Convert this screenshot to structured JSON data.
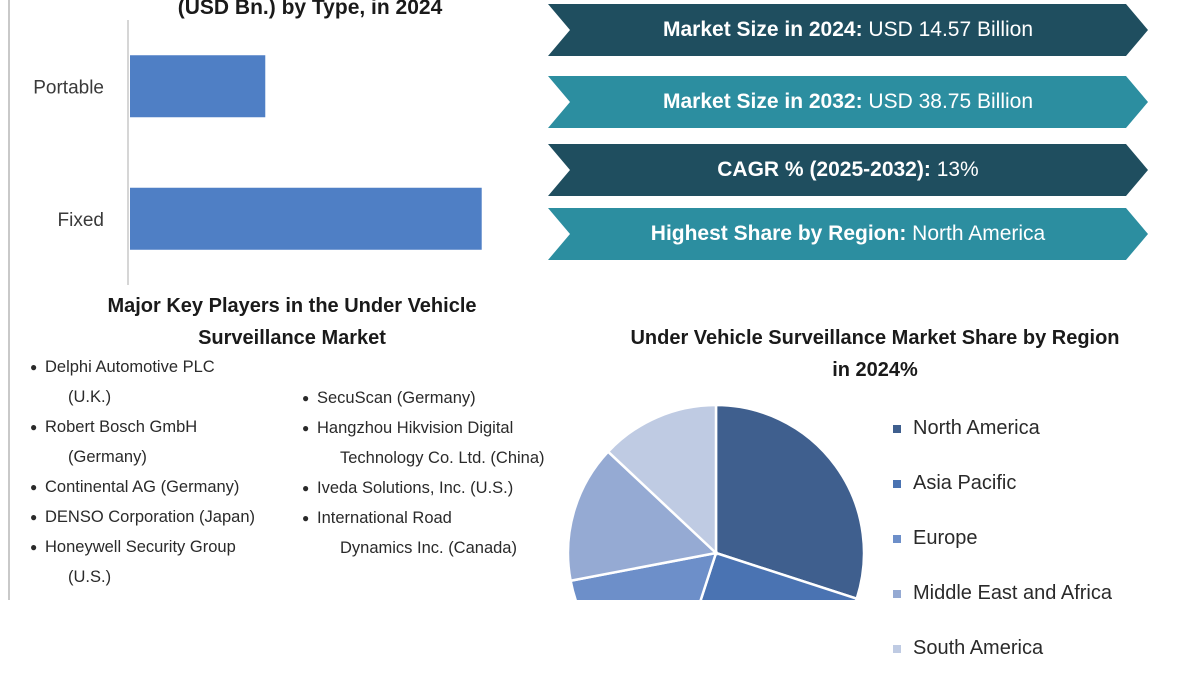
{
  "bar_chart": {
    "title": "(USD Bn.) by Type, in 2024",
    "bar_color": "#4f7fc5"
  },
  "kpis": [
    {
      "label": "Market Size in 2024:",
      "value": "USD 14.57 Billion",
      "color": "#1f4e5f"
    },
    {
      "label": "Market Size in 2032:",
      "value": "USD 38.75 Billion",
      "color": "#2c8ea0"
    },
    {
      "label": "CAGR % (2025-2032):",
      "value": "13%",
      "color": "#1f4e5f"
    },
    {
      "label": "Highest Share by Region:",
      "value": "North America",
      "color": "#2c8ea0"
    }
  ],
  "key_players": {
    "title": "Major Key Players in the Under Vehicle Surveillance Market",
    "column_1": [
      {
        "name": "Delphi Automotive PLC",
        "cont": "(U.K.)"
      },
      {
        "name": "Robert Bosch GmbH",
        "cont": "(Germany)"
      },
      {
        "name": "Continental AG (Germany)",
        "cont": ""
      },
      {
        "name": "DENSO Corporation (Japan)",
        "cont": ""
      },
      {
        "name": "Honeywell Security Group",
        "cont": "(U.S.)"
      }
    ],
    "column_2": [
      {
        "name": "SecuScan (Germany)",
        "cont": ""
      },
      {
        "name": "Hangzhou Hikvision Digital",
        "cont": "Technology Co. Ltd. (China)"
      },
      {
        "name": "Iveda Solutions, Inc. (U.S.)",
        "cont": ""
      },
      {
        "name": "International Road",
        "cont": "Dynamics Inc. (Canada)"
      }
    ]
  },
  "pie_section": {
    "title": "Under Vehicle Surveillance Market Share by Region in 2024%"
  },
  "chart_data": [
    {
      "type": "bar",
      "orientation": "horizontal",
      "title": "(USD Bn.) by Type, in 2024",
      "categories": [
        "Portable",
        "Fixed"
      ],
      "values": [
        1.0,
        2.6
      ],
      "xlabel": "",
      "ylabel": "",
      "grid": false
    },
    {
      "type": "pie",
      "title": "Under Vehicle Surveillance Market Share by Region in 2024%",
      "labels": [
        "North America",
        "Asia Pacific",
        "Europe",
        "Middle East and Africa",
        "South America"
      ],
      "values": [
        30,
        25,
        17,
        15,
        13
      ],
      "colors": [
        "#3f5f8e",
        "#4a73b2",
        "#6d8fc9",
        "#95aad3",
        "#bfcbe3"
      ],
      "legend_position": "right"
    }
  ]
}
